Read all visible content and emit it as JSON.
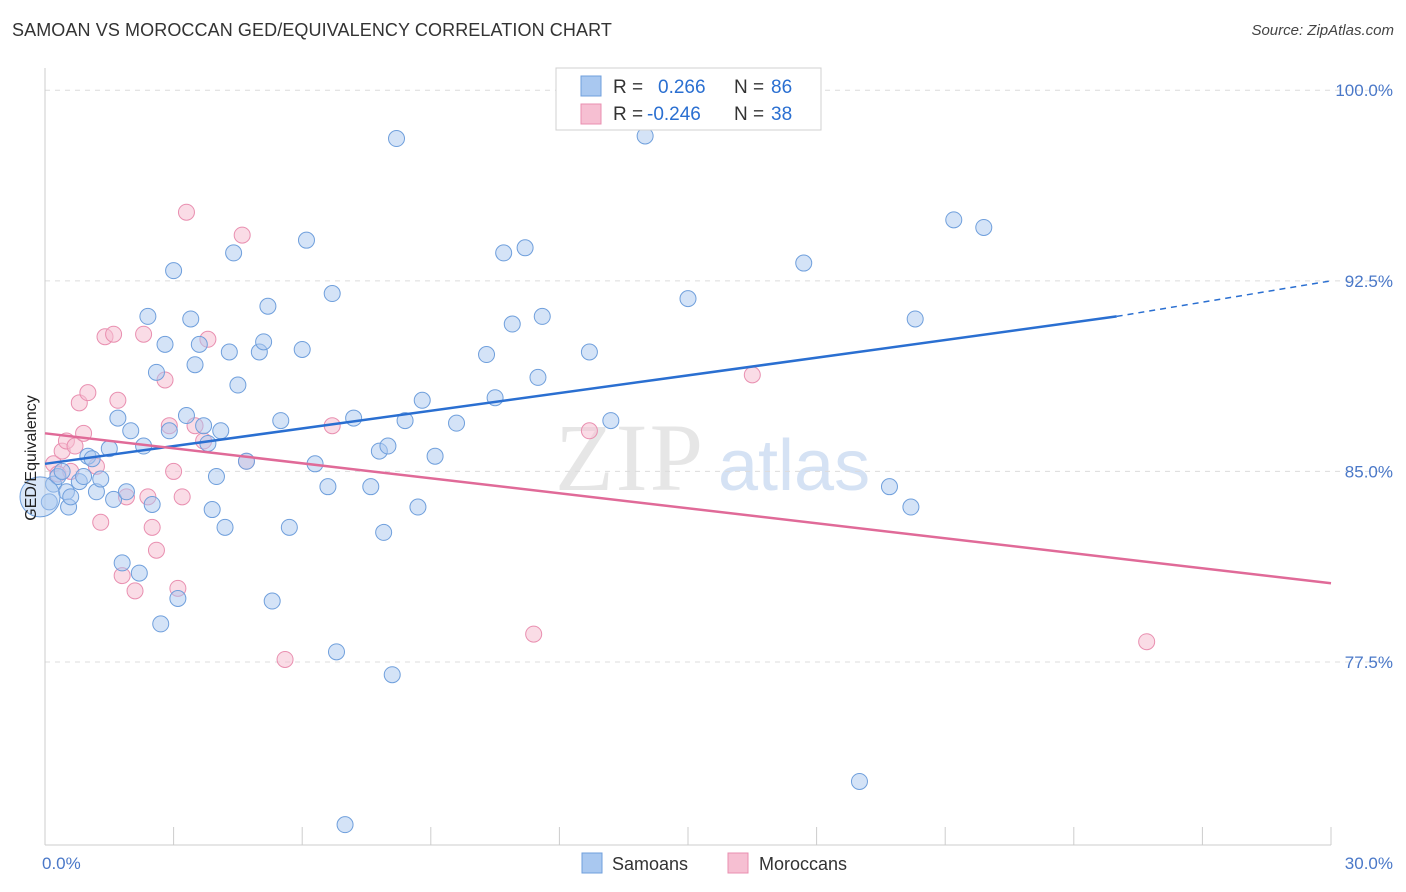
{
  "header": {
    "title": "SAMOAN VS MOROCCAN GED/EQUIVALENCY CORRELATION CHART",
    "source": "Source: ZipAtlas.com"
  },
  "watermark": {
    "zip": "ZIP",
    "atlas": "atlas"
  },
  "colors": {
    "samoan_fill": "#a9c8f0",
    "samoan_stroke": "#6f9fdc",
    "samoan_line": "#2a6fd1",
    "moroccan_fill": "#f6bfd2",
    "moroccan_stroke": "#e98fb0",
    "moroccan_line": "#e06a98",
    "tick_label": "#4a78c8",
    "grid": "#dcdcdc"
  },
  "legend": {
    "rows": [
      {
        "r_label": "R =",
        "r_value": "0.266",
        "n_label": "N =",
        "n_value": "86"
      },
      {
        "r_label": "R =",
        "r_value": "-0.246",
        "n_label": "N =",
        "n_value": "38"
      }
    ]
  },
  "bottom_legend": {
    "samoans": "Samoans",
    "moroccans": "Moroccans"
  },
  "chart_data": {
    "type": "scatter",
    "title": "SAMOAN VS MOROCCAN GED/EQUIVALENCY CORRELATION CHART",
    "xlabel": "",
    "ylabel": "GED/Equivalency",
    "xlim": [
      0,
      30
    ],
    "ylim": [
      70.3,
      100.6
    ],
    "x_tick_labels": [
      "0.0%",
      "30.0%"
    ],
    "y_ticks": [
      77.5,
      85.0,
      92.5,
      100.0
    ],
    "y_tick_labels": [
      "77.5%",
      "85.0%",
      "92.5%",
      "100.0%"
    ],
    "grid": true,
    "legend_position": "top-center",
    "series": [
      {
        "name": "Samoans",
        "r": 0.266,
        "n": 86,
        "trend": {
          "x_start": 0,
          "y_start": 85.3,
          "x_end": 25.0,
          "y_end": 91.1,
          "dashed_to_x": 30,
          "dashed_to_y": 92.5
        },
        "points": [
          [
            0.2,
            84.5
          ],
          [
            0.3,
            84.8
          ],
          [
            0.4,
            85.0
          ],
          [
            0.5,
            84.2
          ],
          [
            0.55,
            83.6
          ],
          [
            0.6,
            84.0
          ],
          [
            0.8,
            84.6
          ],
          [
            0.9,
            84.8
          ],
          [
            1.0,
            85.6
          ],
          [
            1.1,
            85.5
          ],
          [
            1.2,
            84.2
          ],
          [
            1.3,
            84.7
          ],
          [
            1.5,
            85.9
          ],
          [
            1.6,
            83.9
          ],
          [
            1.7,
            87.1
          ],
          [
            1.8,
            81.4
          ],
          [
            1.9,
            84.2
          ],
          [
            2.0,
            86.6
          ],
          [
            2.2,
            81.0
          ],
          [
            2.3,
            86.0
          ],
          [
            2.4,
            91.1
          ],
          [
            2.5,
            83.7
          ],
          [
            2.6,
            88.9
          ],
          [
            2.7,
            79.0
          ],
          [
            2.8,
            90.0
          ],
          [
            2.9,
            86.6
          ],
          [
            3.0,
            92.9
          ],
          [
            3.1,
            80.0
          ],
          [
            3.3,
            87.2
          ],
          [
            3.4,
            91.0
          ],
          [
            3.5,
            89.2
          ],
          [
            3.6,
            90.0
          ],
          [
            3.7,
            86.8
          ],
          [
            3.8,
            86.1
          ],
          [
            3.9,
            83.5
          ],
          [
            4.0,
            84.8
          ],
          [
            4.1,
            86.6
          ],
          [
            4.2,
            82.8
          ],
          [
            4.3,
            89.7
          ],
          [
            4.4,
            93.6
          ],
          [
            4.5,
            88.4
          ],
          [
            4.7,
            85.4
          ],
          [
            5.0,
            89.7
          ],
          [
            5.1,
            90.1
          ],
          [
            5.2,
            91.5
          ],
          [
            5.3,
            79.9
          ],
          [
            5.5,
            87.0
          ],
          [
            5.7,
            82.8
          ],
          [
            6.0,
            89.8
          ],
          [
            6.1,
            94.1
          ],
          [
            6.3,
            85.3
          ],
          [
            6.6,
            84.4
          ],
          [
            6.7,
            92.0
          ],
          [
            6.8,
            77.9
          ],
          [
            7.0,
            71.1
          ],
          [
            7.2,
            87.1
          ],
          [
            7.6,
            84.4
          ],
          [
            7.8,
            85.8
          ],
          [
            7.9,
            82.6
          ],
          [
            8.0,
            86.0
          ],
          [
            8.1,
            77.0
          ],
          [
            8.2,
            98.1
          ],
          [
            8.4,
            87.0
          ],
          [
            8.7,
            83.6
          ],
          [
            8.8,
            87.8
          ],
          [
            9.1,
            85.6
          ],
          [
            9.6,
            86.9
          ],
          [
            10.3,
            89.6
          ],
          [
            10.5,
            87.9
          ],
          [
            10.7,
            93.6
          ],
          [
            10.9,
            90.8
          ],
          [
            11.2,
            93.8
          ],
          [
            11.5,
            88.7
          ],
          [
            11.6,
            91.1
          ],
          [
            12.7,
            89.7
          ],
          [
            13.2,
            87.0
          ],
          [
            14.0,
            98.2
          ],
          [
            15.0,
            91.8
          ],
          [
            17.7,
            93.2
          ],
          [
            19.0,
            72.8
          ],
          [
            19.7,
            84.4
          ],
          [
            20.2,
            83.6
          ],
          [
            20.3,
            91.0
          ],
          [
            21.2,
            94.9
          ],
          [
            21.9,
            94.6
          ],
          [
            0.1,
            83.8
          ]
        ]
      },
      {
        "name": "Moroccans",
        "r": -0.246,
        "n": 38,
        "trend": {
          "x_start": 0,
          "y_start": 86.5,
          "x_end": 30.0,
          "y_end": 80.6
        },
        "points": [
          [
            0.2,
            85.3
          ],
          [
            0.3,
            84.9
          ],
          [
            0.4,
            85.8
          ],
          [
            0.5,
            86.2
          ],
          [
            0.6,
            85.0
          ],
          [
            0.7,
            86.0
          ],
          [
            0.8,
            87.7
          ],
          [
            0.9,
            86.5
          ],
          [
            1.0,
            88.1
          ],
          [
            1.2,
            85.2
          ],
          [
            1.3,
            83.0
          ],
          [
            1.4,
            90.3
          ],
          [
            1.6,
            90.4
          ],
          [
            1.7,
            87.8
          ],
          [
            1.8,
            80.9
          ],
          [
            1.9,
            84.0
          ],
          [
            2.1,
            80.3
          ],
          [
            2.3,
            90.4
          ],
          [
            2.4,
            84.0
          ],
          [
            2.5,
            82.8
          ],
          [
            2.6,
            81.9
          ],
          [
            2.8,
            88.6
          ],
          [
            2.9,
            86.8
          ],
          [
            3.0,
            85.0
          ],
          [
            3.1,
            80.4
          ],
          [
            3.2,
            84.0
          ],
          [
            3.3,
            95.2
          ],
          [
            3.5,
            86.8
          ],
          [
            3.7,
            86.2
          ],
          [
            3.8,
            90.2
          ],
          [
            4.6,
            94.3
          ],
          [
            4.7,
            85.4
          ],
          [
            5.6,
            77.6
          ],
          [
            6.7,
            86.8
          ],
          [
            11.4,
            78.6
          ],
          [
            12.7,
            86.6
          ],
          [
            16.5,
            88.8
          ],
          [
            25.7,
            78.3
          ]
        ]
      }
    ]
  }
}
